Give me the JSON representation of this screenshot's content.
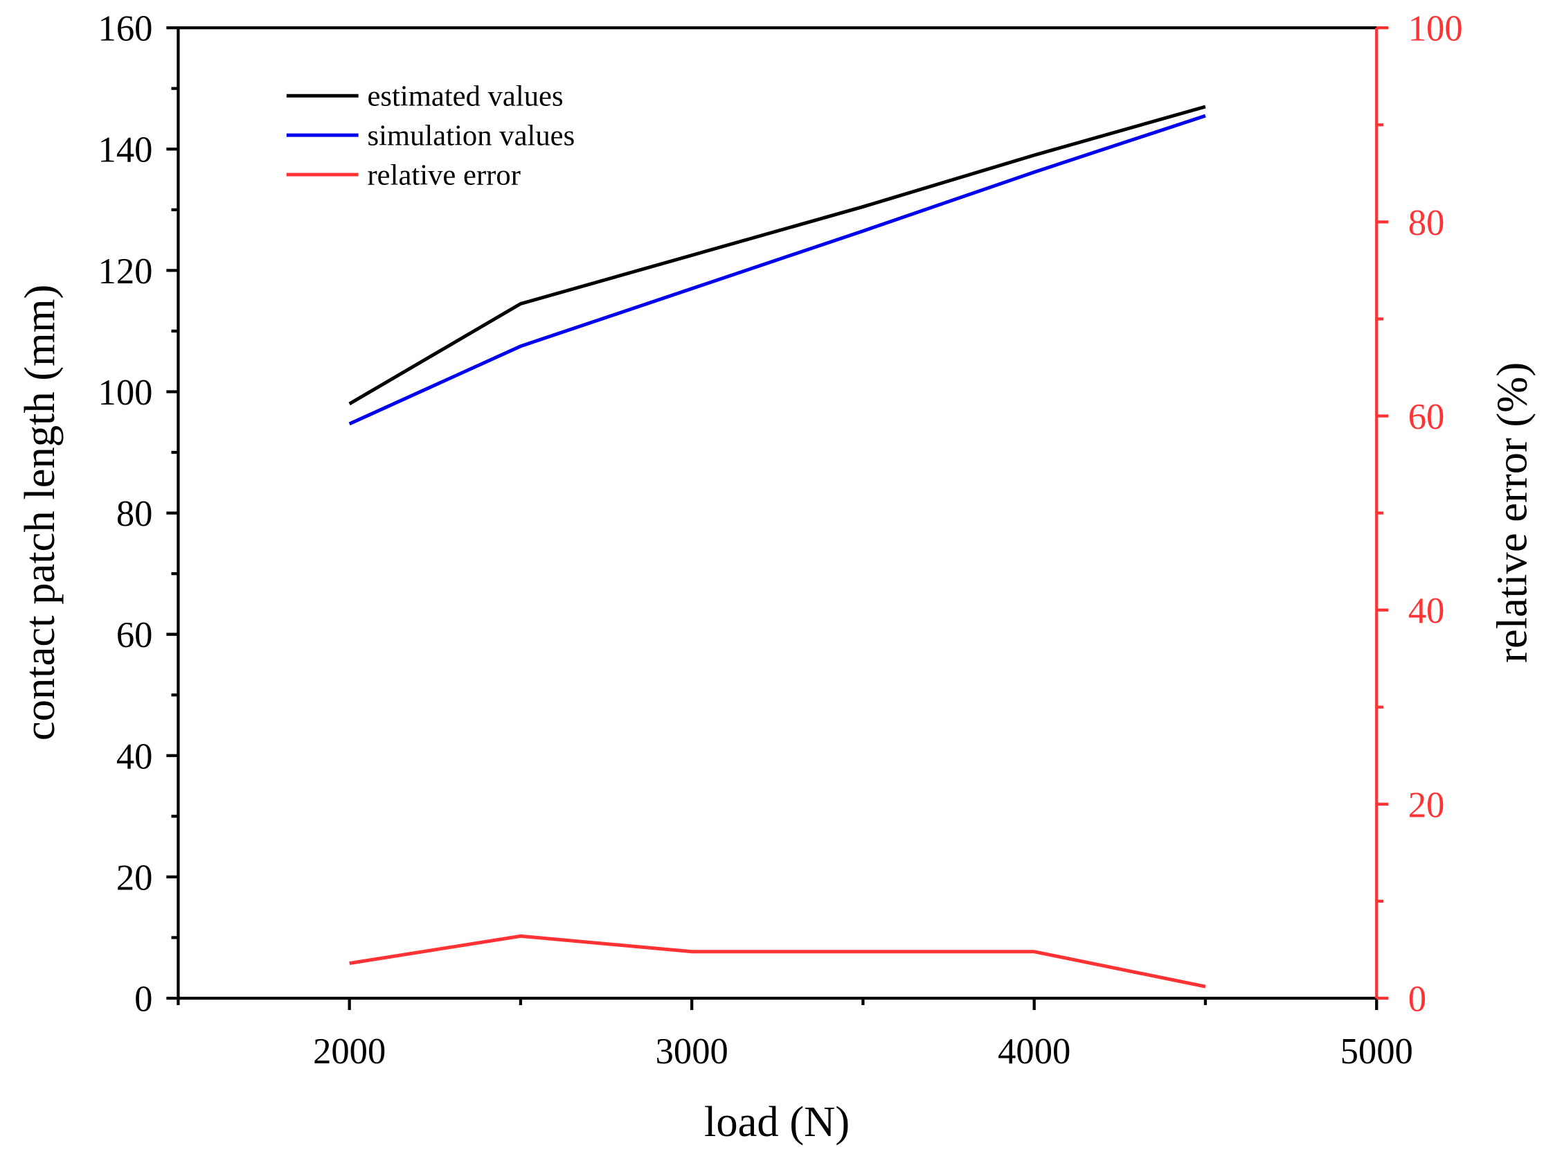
{
  "chart_data": {
    "type": "line",
    "xlabel": "load (N)",
    "ylabel": "contact patch length (mm)",
    "y2label": "relative error (%)",
    "xlim": [
      1500,
      5000
    ],
    "ylim": [
      0,
      160
    ],
    "y2lim": [
      0,
      100
    ],
    "x_ticks": [
      2000,
      3000,
      4000,
      5000
    ],
    "y_ticks": [
      0,
      20,
      40,
      60,
      80,
      100,
      120,
      140,
      160
    ],
    "y2_ticks": [
      0,
      20,
      40,
      60,
      80,
      100
    ],
    "legend_position": "top-left",
    "series": [
      {
        "name": "estimated values",
        "axis": "left",
        "color": "#000000",
        "x": [
          2000,
          2500,
          3000,
          3500,
          4000,
          4500
        ],
        "values": [
          98.0,
          114.5,
          122.5,
          130.5,
          139.0,
          147.0
        ]
      },
      {
        "name": "simulation values",
        "axis": "left",
        "color": "#0000ee",
        "x": [
          2000,
          2500,
          3000,
          3500,
          4000,
          4500
        ],
        "values": [
          94.7,
          107.5,
          117.0,
          126.5,
          136.2,
          145.5
        ]
      },
      {
        "name": "relative error",
        "axis": "right",
        "color": "#ff3333",
        "x": [
          2000,
          2500,
          3000,
          4000,
          4500
        ],
        "values": [
          3.6,
          6.4,
          4.8,
          4.8,
          1.2
        ]
      }
    ]
  }
}
